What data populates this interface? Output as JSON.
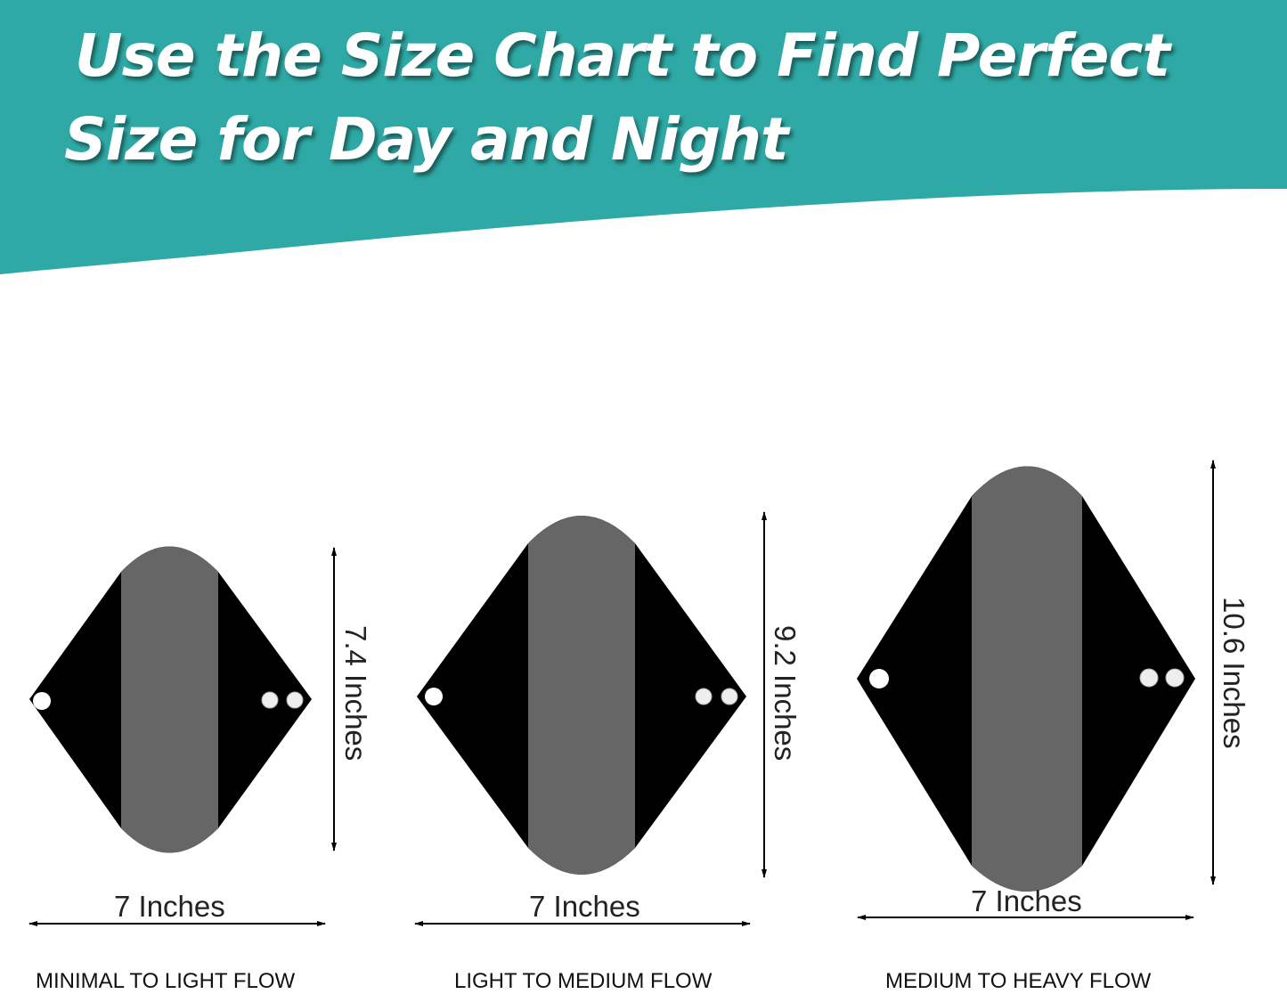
{
  "header": {
    "title_line1": "Use the Size Chart to Find Perfect",
    "title_line2": "Size for Day and Night",
    "color": "#2fa9a5"
  },
  "sizes": [
    {
      "width": "7 Inches",
      "length": "7.4 Inches",
      "label": "MINIMAL TO LIGHT FLOW"
    },
    {
      "width": "7 Inches",
      "length": "9.2 Inches",
      "label": "LIGHT TO MEDIUM FLOW"
    },
    {
      "width": "7 Inches",
      "length": "10.6 Inches",
      "label": "MEDIUM TO HEAVY FLOW"
    }
  ],
  "colors": {
    "pad_body": "#000000",
    "pad_strip": "#666666"
  }
}
